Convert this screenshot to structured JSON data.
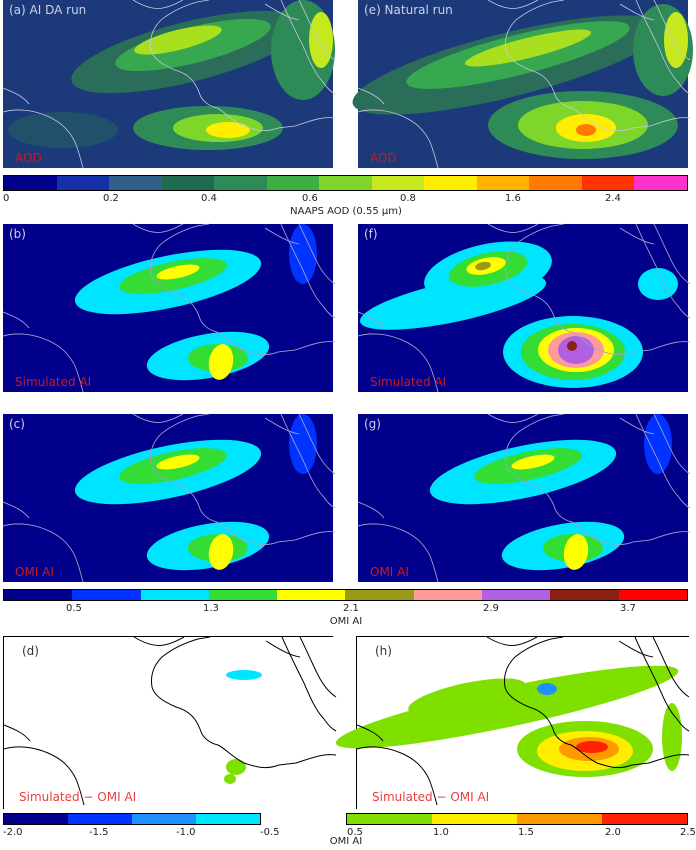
{
  "chart_data": {
    "type": "heatmap",
    "panels": [
      {
        "id": "a",
        "label": "(a)  AI DA run",
        "corner_text": "AOD",
        "quantity": "NAAPS AOD (0.55 µm)"
      },
      {
        "id": "e",
        "label": "(e)  Natural run",
        "corner_text": "AOD",
        "quantity": "NAAPS AOD (0.55 µm)"
      },
      {
        "id": "b",
        "label": "(b)",
        "corner_text": "Simulated AI",
        "quantity": "OMI AI"
      },
      {
        "id": "f",
        "label": "(f)",
        "corner_text": "Simulated AI",
        "quantity": "OMI AI"
      },
      {
        "id": "c",
        "label": "(c)",
        "corner_text": "OMI AI",
        "quantity": "OMI AI"
      },
      {
        "id": "g",
        "label": "(g)",
        "corner_text": "OMI AI",
        "quantity": "OMI AI"
      },
      {
        "id": "d",
        "label": "(d)",
        "corner_text": "Simulated − OMI AI",
        "quantity": "OMI AI"
      },
      {
        "id": "h",
        "label": "(h)",
        "corner_text": "Simulated − OMI AI",
        "quantity": "OMI AI"
      }
    ],
    "colorbars": {
      "aod": {
        "title": "NAAPS AOD (0.55 µm)",
        "ticks": [
          "0",
          "0.2",
          "0.4",
          "0.6",
          "0.8",
          "1.6",
          "2.4"
        ],
        "colors": [
          "#00008b",
          "#1530a8",
          "#2f5f8a",
          "#1f6b50",
          "#2e8b57",
          "#3cb043",
          "#7fd62a",
          "#c6e81e",
          "#ffee00",
          "#ffb300",
          "#ff7a00",
          "#ff3300",
          "#ff33cc"
        ]
      },
      "ai": {
        "title": "OMI AI",
        "ticks": [
          "0.5",
          "1.3",
          "2.1",
          "2.9",
          "3.7"
        ],
        "colors": [
          "#00008b",
          "#0033ff",
          "#00e5ff",
          "#33dd33",
          "#ffff00",
          "#9a9a1a",
          "#ff9a9a",
          "#b060e0",
          "#8b2010",
          "#ff0000"
        ]
      },
      "diff": {
        "title": "OMI AI",
        "ticks": [
          "-2.0",
          "-1.5",
          "-1.0",
          "-0.5",
          "0.5",
          "1.0",
          "1.5",
          "2.0",
          "2.5"
        ],
        "colors_neg": [
          "#00008b",
          "#0033ff",
          "#1e90ff",
          "#00e5ff"
        ],
        "colors_pos": [
          "#7fe000",
          "#ffee00",
          "#ff9900",
          "#ff2200"
        ]
      }
    }
  }
}
